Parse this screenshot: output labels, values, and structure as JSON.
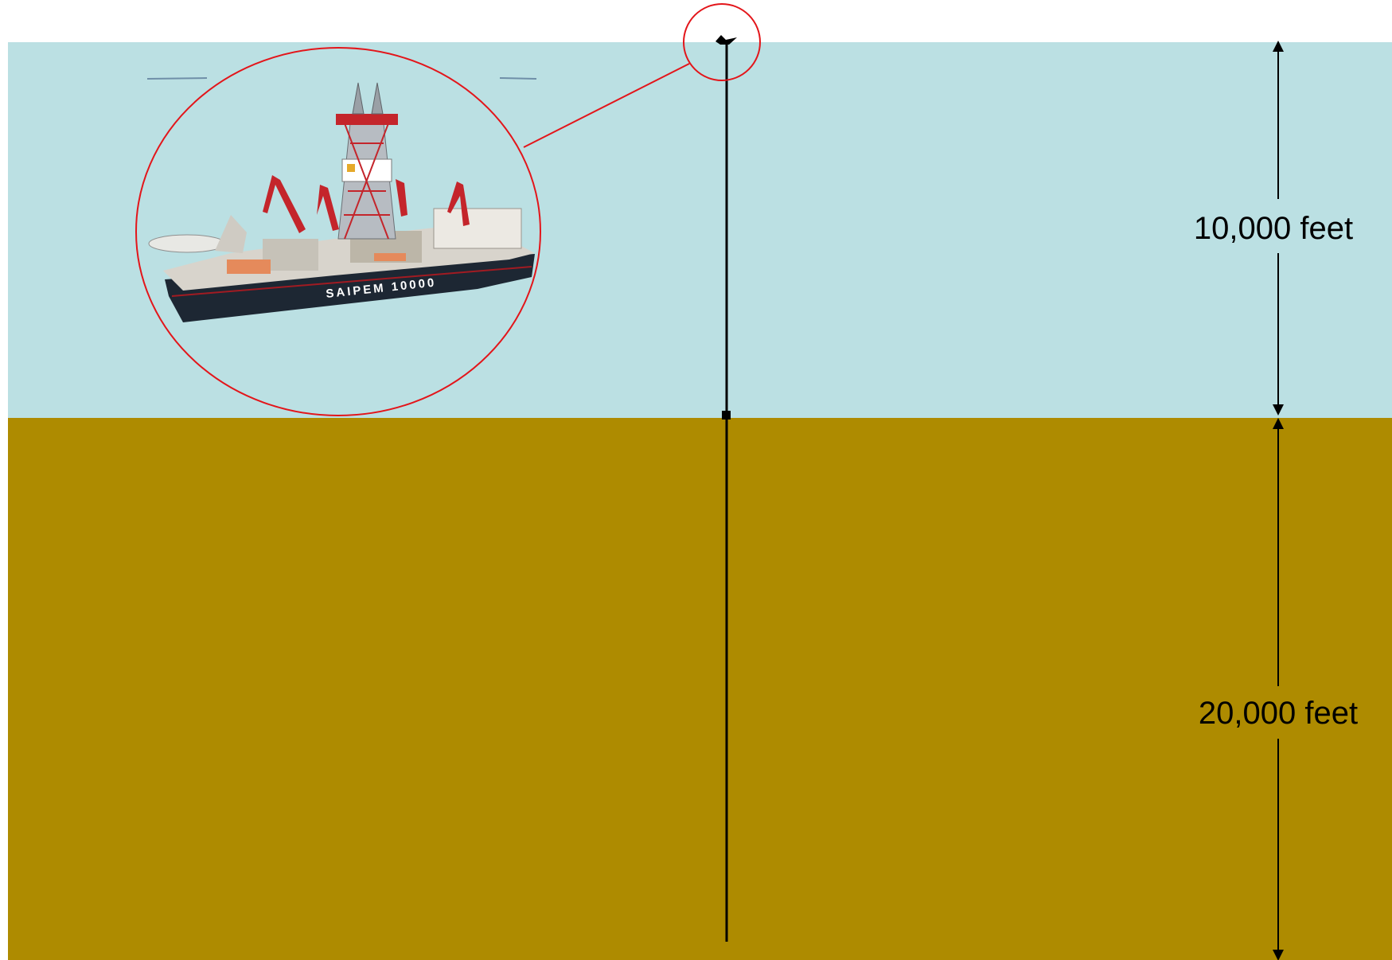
{
  "diagram": {
    "water_depth_label": "10,000 feet",
    "subsea_depth_label": "20,000 feet",
    "ship_name": "SAIPEM 10000",
    "colors": {
      "water": "#bbe0e3",
      "seabed": "#ae8b00",
      "callout": "#e3151a",
      "drill_string": "#000000"
    }
  }
}
